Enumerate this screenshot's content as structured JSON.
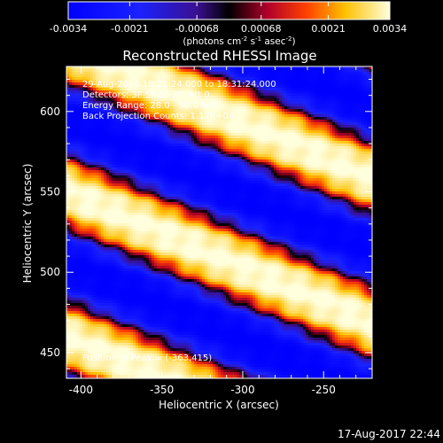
{
  "chart_data": {
    "type": "heatmap",
    "title": "Reconstructed RHESSI Image",
    "xlabel": "Heliocentric X (arcsec)",
    "ylabel": "Heliocentric Y (arcsec)",
    "xlim": [
      -409,
      -220
    ],
    "ylim": [
      434,
      628
    ],
    "x_ticks": [
      -400,
      -350,
      -300,
      -250
    ],
    "y_ticks": [
      450,
      500,
      550,
      600
    ],
    "colorbar": {
      "min": -0.0034,
      "max": 0.0034,
      "tick_values": [
        -0.0034,
        -0.0021,
        -0.00068,
        0.00068,
        0.0021,
        0.0034
      ],
      "tick_labels": [
        "-0.0034",
        "-0.0021",
        "-0.00068",
        "0.00068",
        "0.0021",
        "0.0034"
      ],
      "unit_label": "(photons cm",
      "unit_exp1": "-2",
      "unit_mid": " s",
      "unit_exp2": "-1",
      "unit_mid2": " asec",
      "unit_exp3": "-2",
      "unit_end": ")"
    },
    "stripe_pattern": {
      "description": "diagonal fringe pattern, stripes descending to the right",
      "slope_arcsec_per_arcsec": -0.43,
      "fringe_period_arcsec": 90,
      "bright_centers_at_x_minus400": [
        456,
        592
      ],
      "dark_center_at_x_minus400": 530
    },
    "annotations": [
      "29-Aug-2015 18:21:24.000 to 18:31:24.000",
      "Detectors: 3F 5F 6F 7F, Att 0",
      "Energy Range: 28.0 - 50.0 keV",
      "Back Projection Counts: 1.17E+04",
      "Position of Peak = (-363,415)"
    ]
  },
  "timestamp": "17-Aug-2017 22:44"
}
